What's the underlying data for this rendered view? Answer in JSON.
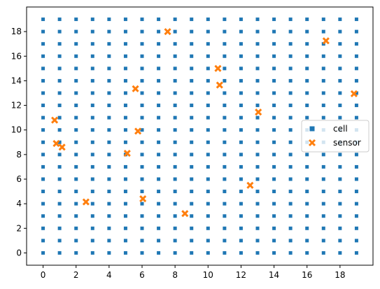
{
  "chart_data": {
    "type": "scatter",
    "xlim": [
      -1,
      20
    ],
    "ylim": [
      -1,
      20
    ],
    "x_ticks": [
      0,
      2,
      4,
      6,
      8,
      10,
      12,
      14,
      16,
      18
    ],
    "y_ticks": [
      0,
      2,
      4,
      6,
      8,
      10,
      12,
      14,
      16,
      18
    ],
    "grid": false,
    "legend_position": "center-right",
    "series": [
      {
        "name": "cell",
        "marker": "square",
        "color": "#1f77b4",
        "grid_x_range": [
          0,
          19
        ],
        "grid_y_range": [
          0,
          19
        ],
        "grid_step": 1
      },
      {
        "name": "sensor",
        "marker": "x",
        "color": "#ff7f0e",
        "points": [
          [
            0.7,
            10.8
          ],
          [
            0.8,
            8.9
          ],
          [
            1.15,
            8.6
          ],
          [
            2.6,
            4.15
          ],
          [
            5.1,
            8.1
          ],
          [
            5.6,
            13.35
          ],
          [
            5.75,
            9.9
          ],
          [
            6.05,
            4.4
          ],
          [
            7.55,
            18.0
          ],
          [
            8.6,
            3.2
          ],
          [
            10.6,
            15.0
          ],
          [
            10.7,
            13.65
          ],
          [
            12.55,
            5.5
          ],
          [
            13.05,
            11.45
          ],
          [
            17.15,
            17.25
          ],
          [
            18.85,
            12.95
          ]
        ]
      }
    ]
  }
}
